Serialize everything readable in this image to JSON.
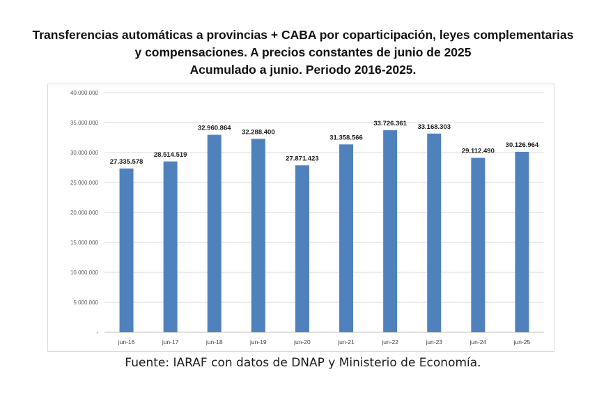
{
  "title": {
    "line1": "Transferencias automáticas a provincias + CABA por coparticipación, leyes complementarias",
    "line2": "y compensaciones.  A precios constantes de junio de 2025",
    "line3": "Acumulado a junio. Periodo 2016-2025."
  },
  "source": "Fuente: IARAF con datos de DNAP y Ministerio de Economía.",
  "chart_data": {
    "type": "bar",
    "title": "Transferencias automáticas a provincias + CABA por coparticipación, leyes complementarias y compensaciones. A precios constantes de junio de 2025. Acumulado a junio. Periodo 2016-2025.",
    "xlabel": "",
    "ylabel": "",
    "categories": [
      "jun-16",
      "jun-17",
      "jun-18",
      "jun-19",
      "jun-20",
      "jun-21",
      "jun-22",
      "jun-23",
      "jun-24",
      "jun-25"
    ],
    "values": [
      27335578,
      28514519,
      32960864,
      32288400,
      27871423,
      31358566,
      33726361,
      33168303,
      29112490,
      30126964
    ],
    "value_labels": [
      "27.335.578",
      "28.514.519",
      "32.960.864",
      "32.288.400",
      "27.871.423",
      "31.358.566",
      "33.726.361",
      "33.168.303",
      "29.112.490",
      "30.126.964"
    ],
    "ylim": [
      0,
      40000000
    ],
    "yticks": [
      0,
      5000000,
      10000000,
      15000000,
      20000000,
      25000000,
      30000000,
      35000000,
      40000000
    ],
    "ytick_labels": [
      "-",
      "5.000.000",
      "10.000.000",
      "15.000.000",
      "20.000.000",
      "25.000.000",
      "30.000.000",
      "35.000.000",
      "40.000.000"
    ],
    "grid": true,
    "bar_color": "#4f81bd",
    "grid_color": "#d9d9d9"
  }
}
